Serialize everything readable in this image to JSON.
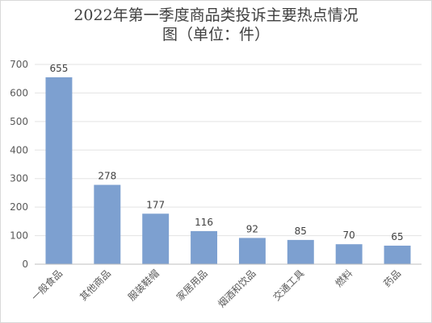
{
  "chart_data": {
    "type": "bar",
    "title_line1": "2022年第一季度商品类投诉主要热点情况",
    "title_line2": "图（单位：件）",
    "categories": [
      "一般食品",
      "其他商品",
      "服装鞋帽",
      "家居用品",
      "烟酒和饮品",
      "交通工具",
      "燃料",
      "药品"
    ],
    "values": [
      655,
      278,
      177,
      116,
      92,
      85,
      70,
      65
    ],
    "xlabel": "",
    "ylabel": "",
    "ylim": [
      0,
      700
    ],
    "yticks": [
      0,
      100,
      200,
      300,
      400,
      500,
      600,
      700
    ],
    "grid": true,
    "legend": "none",
    "bar_color": "#7da0d0"
  }
}
